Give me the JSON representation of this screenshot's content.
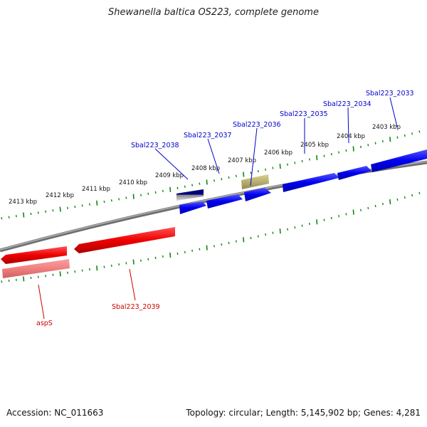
{
  "title": "Shewanella baltica OS223, complete genome",
  "footer": {
    "accession": "Accession: NC_011663",
    "topology": "Topology: circular; Length: 5,145,902 bp; Genes: 4,281"
  },
  "colors": {
    "forward": "#0000ee",
    "reverse": "#ee0000",
    "pseudo": "#b8b070",
    "tick": "#118811",
    "backbone": "#808080"
  },
  "scale_labels": [
    "2413 kbp",
    "2412 kbp",
    "2411 kbp",
    "2410 kbp",
    "2409 kbp",
    "2408 kbp",
    "2407 kbp",
    "2406 kbp",
    "2405 kbp",
    "2404 kbp",
    "2403 kbp"
  ],
  "gene_labels": [
    {
      "text": "Sbal223_2033",
      "strand": "forward"
    },
    {
      "text": "Sbal223_2034",
      "strand": "forward"
    },
    {
      "text": "Sbal223_2035",
      "strand": "forward"
    },
    {
      "text": "Sbal223_2036",
      "strand": "forward"
    },
    {
      "text": "Sbal223_2037",
      "strand": "forward"
    },
    {
      "text": "Sbal223_2038",
      "strand": "forward"
    },
    {
      "text": "Sbal223_2039",
      "strand": "reverse"
    },
    {
      "text": "aspS",
      "strand": "reverse"
    }
  ]
}
